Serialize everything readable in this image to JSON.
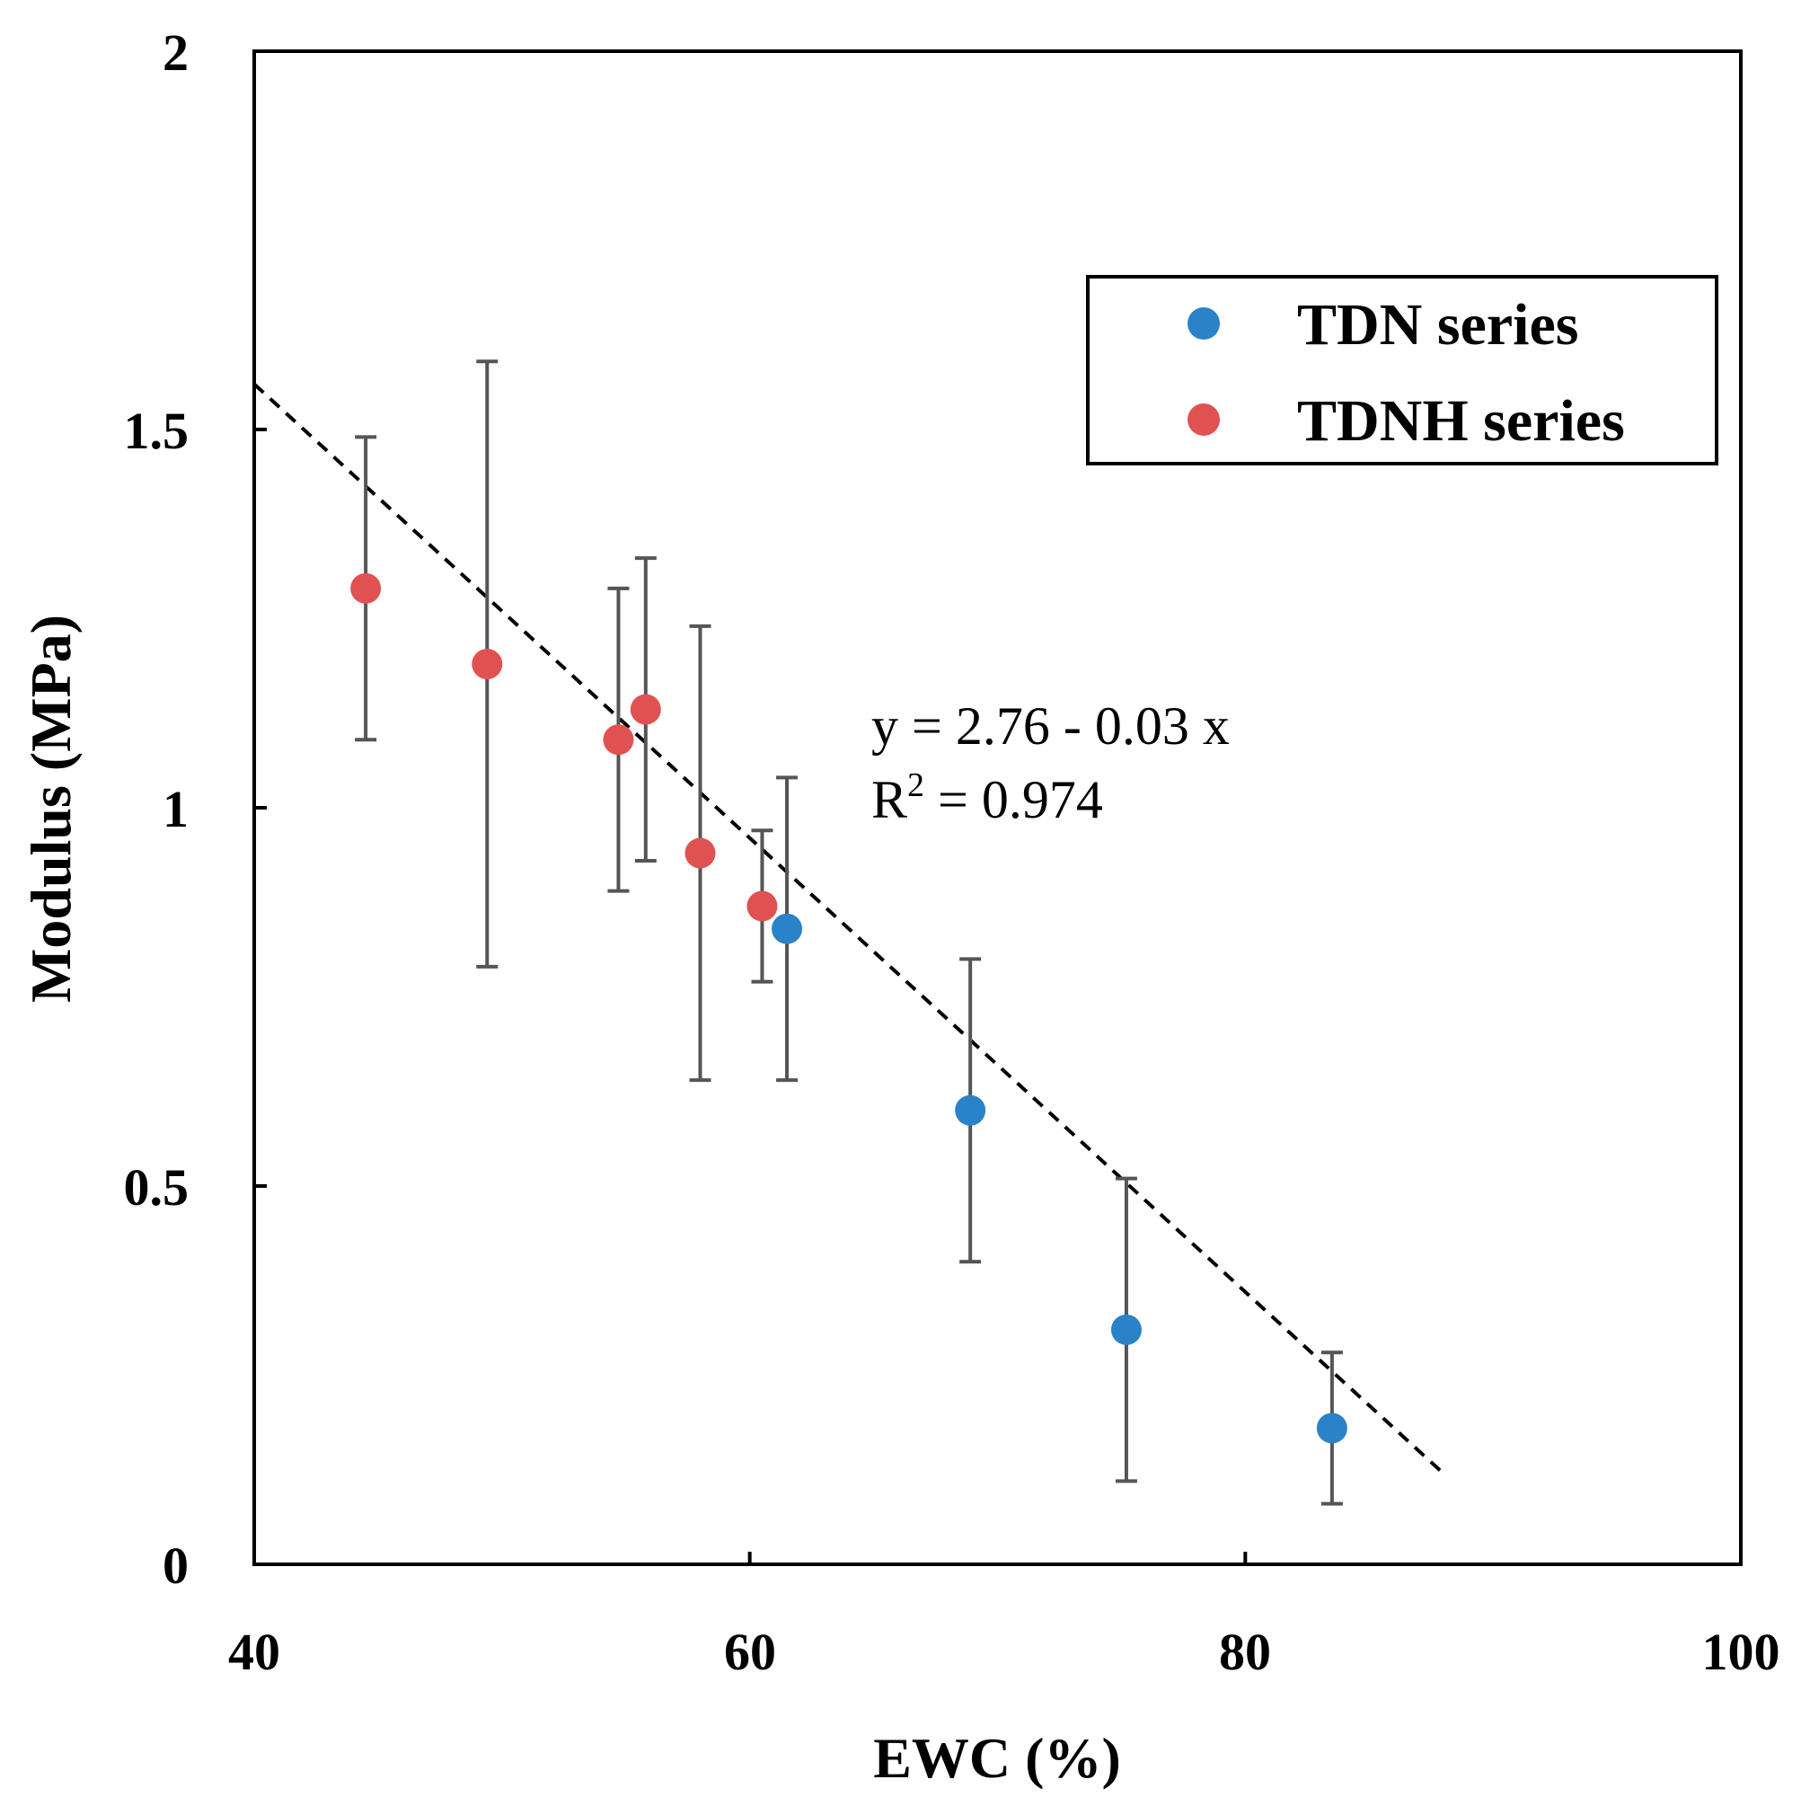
{
  "chart_data": {
    "type": "scatter",
    "title": "",
    "xlabel": "EWC (%)",
    "ylabel": "Modulus (MPa)",
    "xlim": [
      40,
      100
    ],
    "ylim": [
      0,
      2
    ],
    "xticks": [
      40,
      60,
      80,
      100
    ],
    "yticks": [
      0,
      0.5,
      1,
      1.5,
      2
    ],
    "xtick_labels": [
      "40",
      "60",
      "80",
      "100"
    ],
    "ytick_labels": [
      "0",
      "0.5",
      "1",
      "1.5",
      "2"
    ],
    "grid": false,
    "legend_position": "top-right",
    "series": [
      {
        "name": "TDN series",
        "color": "#2a82c8",
        "points": [
          {
            "x": 61.5,
            "y": 0.84,
            "err_low": 0.64,
            "err_high": 1.04
          },
          {
            "x": 68.9,
            "y": 0.6,
            "err_low": 0.4,
            "err_high": 0.8
          },
          {
            "x": 75.2,
            "y": 0.31,
            "err_low": 0.11,
            "err_high": 0.51
          },
          {
            "x": 83.5,
            "y": 0.18,
            "err_low": 0.08,
            "err_high": 0.28
          }
        ]
      },
      {
        "name": "TDNH series",
        "color": "#e05252",
        "points": [
          {
            "x": 44.5,
            "y": 1.29,
            "err_low": 1.09,
            "err_high": 1.49
          },
          {
            "x": 49.4,
            "y": 1.19,
            "err_low": 0.79,
            "err_high": 1.59
          },
          {
            "x": 54.7,
            "y": 1.09,
            "err_low": 0.89,
            "err_high": 1.29
          },
          {
            "x": 55.8,
            "y": 1.13,
            "err_low": 0.93,
            "err_high": 1.33
          },
          {
            "x": 58.0,
            "y": 0.94,
            "err_low": 0.64,
            "err_high": 1.24
          },
          {
            "x": 60.5,
            "y": 0.87,
            "err_low": 0.77,
            "err_high": 0.97
          }
        ]
      }
    ],
    "fit_line": {
      "style": "dashed",
      "intercept": 2.76,
      "slope": -0.03,
      "x_start": 40,
      "x_end": 88
    },
    "annotations": {
      "equation": "y = 2.76 - 0.03 x",
      "r2_prefix": "R",
      "r2_sup": "2",
      "r2_rest": " = 0.974"
    },
    "errorbar_color": "#555555"
  }
}
